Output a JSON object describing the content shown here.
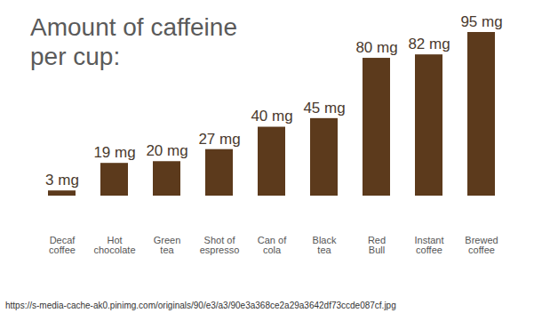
{
  "chart_data": {
    "type": "bar",
    "title": "Amount of caffeine per cup:",
    "categories": [
      "Decaf coffee",
      "Hot chocolate",
      "Green tea",
      "Shot of espresso",
      "Can of cola",
      "Black tea",
      "Red Bull",
      "Instant coffee",
      "Brewed coffee"
    ],
    "values": [
      3,
      19,
      20,
      27,
      40,
      45,
      80,
      82,
      95
    ],
    "value_labels": [
      "3 mg",
      "19 mg",
      "20 mg",
      "27 mg",
      "40 mg",
      "45 mg",
      "80 mg",
      "82 mg",
      "95 mg"
    ],
    "color": "#5c3a1c",
    "ylim": [
      0,
      95
    ],
    "data_labels": true,
    "tick_labels": "x"
  },
  "caption": "https://s-media-cache-ak0.pinimg.com/originals/90/e3/a3/90e3a368ce2a29a3642df73ccde087cf.jpg"
}
